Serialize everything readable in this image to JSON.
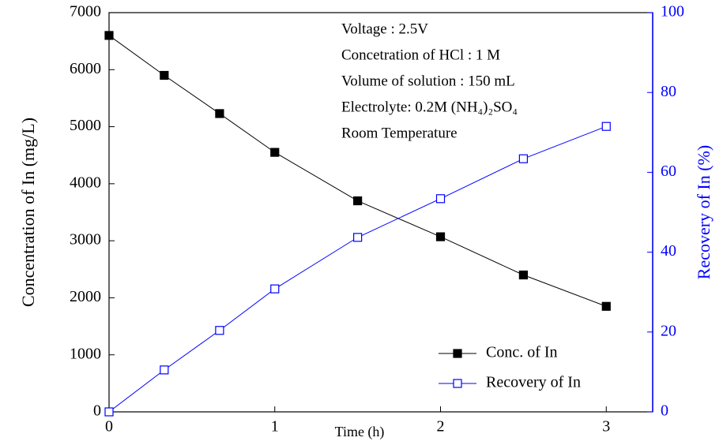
{
  "chart_data": {
    "type": "line",
    "x_label": "Time (h)",
    "y_label": "Concentration of In (mg/L)",
    "y2_label": "Recovery of In (%)",
    "annotations": [
      "Voltage : 2.5V",
      "Concetration of HCl : 1 M",
      "Volume of solution : 150 mL",
      "Electrolyte: 0.2M (NH₄)₂SO₄",
      "Room Temperature"
    ],
    "x": [
      0,
      0.333,
      0.667,
      1,
      1.5,
      2,
      2.5,
      3
    ],
    "series": [
      {
        "name": "Conc. of In",
        "color": "#000000",
        "marker": "filled-square",
        "values": [
          6600,
          5900,
          5230,
          4550,
          3700,
          3070,
          2400,
          1850
        ]
      },
      {
        "name": "Recovery of In",
        "color": "#0000ff",
        "marker": "open-square",
        "axis": "y2",
        "values": [
          0,
          10.5,
          20.4,
          30.8,
          43.7,
          53.4,
          63.4,
          71.5
        ]
      }
    ],
    "xlim": [
      0,
      3.28
    ],
    "xticks": [
      0,
      1,
      2,
      3
    ],
    "ylim": [
      0,
      7000
    ],
    "yticks": [
      0,
      1000,
      2000,
      3000,
      4000,
      5000,
      6000,
      7000
    ],
    "y2lim": [
      0,
      100
    ],
    "y2ticks": [
      0,
      20,
      40,
      60,
      80,
      100
    ],
    "y2_color": "#0000ff",
    "legend": "lower right"
  }
}
